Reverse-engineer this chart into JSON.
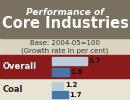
{
  "title_line1": "Performance of",
  "title_line2": "Core Industries",
  "subtitle1": "Base: 2004-05=100",
  "subtitle2": "(Growth rate in per cent)",
  "rows": [
    {
      "label": "Overall",
      "value_old": 3.7,
      "value_new": 1.8,
      "bg_color": "#8B1A1A",
      "label_color": "#FFFFFF"
    },
    {
      "label": "Coal",
      "value_old": 1.2,
      "value_new": 1.7,
      "bg_color": "#E8E4D4",
      "label_color": "#222222"
    }
  ],
  "bar_color_old": "#B8CDD8",
  "bar_color_new": "#4477AA",
  "title_bg": "#7A7060",
  "lower_bg": "#D8D4C0",
  "max_bar": 4.5,
  "bar_label_fontsize": 5.0,
  "label_fontsize": 6.0,
  "title1_fontsize": 6.5,
  "title2_fontsize": 10.5,
  "subtitle_fontsize": 5.0
}
